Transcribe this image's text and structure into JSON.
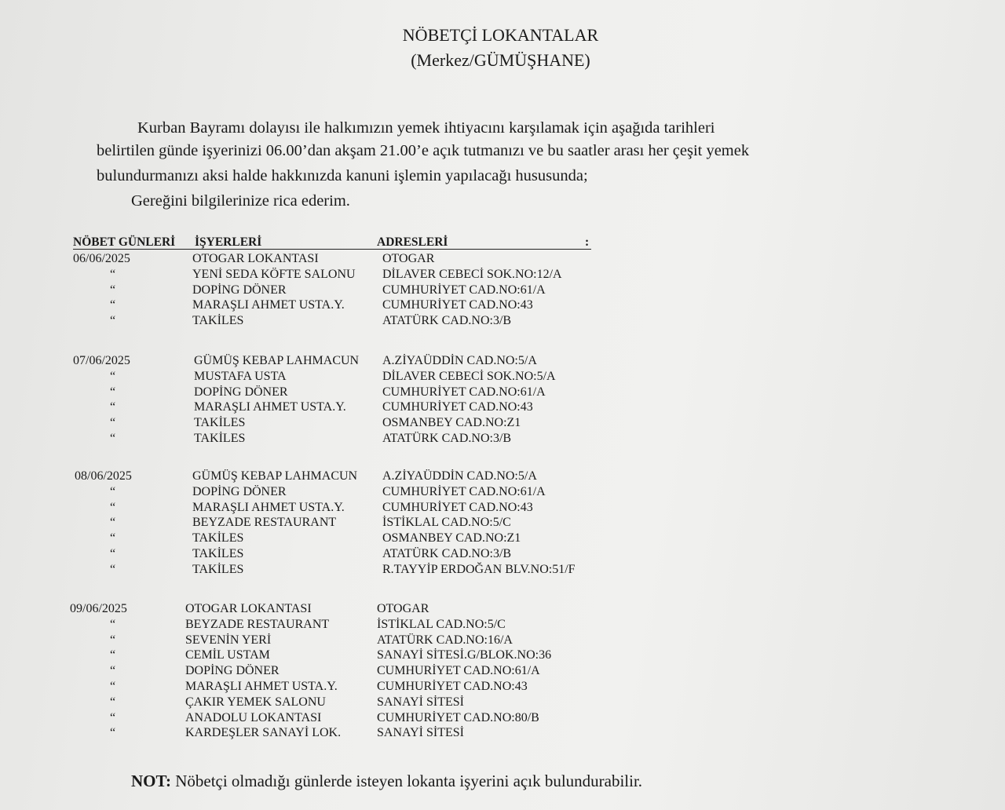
{
  "title": "NÖBETÇİ LOKANTALAR",
  "subtitle": "(Merkez/GÜMÜŞHANE)",
  "paragraph": {
    "line1": "Kurban Bayramı dolayısı ile halkımızın yemek ihtiyacını karşılamak için aşağıda tarihleri",
    "line2": "belirtilen günde işyerinizi 06.00’dan akşam 21.00’e  açık tutmanızı ve bu saatler arası her çeşit yemek",
    "line3": "bulundurmanızı aksi halde hakkınızda kanuni  işlemin yapılacağı hususunda;",
    "line4": "Gereğini bilgilerinize  rica ederim."
  },
  "table": {
    "headers": [
      "NÖBET GÜNLERİ",
      "İŞYERLERİ",
      "ADRESLERİ",
      ":"
    ],
    "ditto": "“",
    "days": [
      {
        "date": "06/06/2025",
        "rows": [
          [
            "OTOGAR LOKANTASI",
            "OTOGAR"
          ],
          [
            "YENİ SEDA KÖFTE SALONU",
            "DİLAVER CEBECİ SOK.NO:12/A"
          ],
          [
            "DOPİNG DÖNER",
            "CUMHURİYET CAD.NO:61/A"
          ],
          [
            "MARAŞLI AHMET USTA.Y.",
            "CUMHURİYET CAD.NO:43"
          ],
          [
            "TAKİLES",
            "ATATÜRK CAD.NO:3/B"
          ]
        ]
      },
      {
        "date": "07/06/2025",
        "rows": [
          [
            "GÜMÜŞ KEBAP LAHMACUN",
            "A.ZİYAÜDDİN CAD.NO:5/A"
          ],
          [
            "MUSTAFA USTA",
            "DİLAVER CEBECİ SOK.NO:5/A"
          ],
          [
            "DOPİNG DÖNER",
            "CUMHURİYET CAD.NO:61/A"
          ],
          [
            "MARAŞLI AHMET USTA.Y.",
            "CUMHURİYET CAD.NO:43"
          ],
          [
            "TAKİLES",
            "OSMANBEY CAD.NO:Z1"
          ],
          [
            "TAKİLES",
            "ATATÜRK CAD.NO:3/B"
          ]
        ]
      },
      {
        "date": "08/06/2025",
        "rows": [
          [
            "GÜMÜŞ KEBAP LAHMACUN",
            "A.ZİYAÜDDİN CAD.NO:5/A"
          ],
          [
            "DOPİNG DÖNER",
            "CUMHURİYET CAD.NO:61/A"
          ],
          [
            "MARAŞLI AHMET USTA.Y.",
            "CUMHURİYET CAD.NO:43"
          ],
          [
            "BEYZADE  RESTAURANT",
            "İSTİKLAL CAD.NO:5/C"
          ],
          [
            "TAKİLES",
            "OSMANBEY CAD.NO:Z1"
          ],
          [
            "TAKİLES",
            "ATATÜRK CAD.NO:3/B"
          ],
          [
            "TAKİLES",
            "R.TAYYİP ERDOĞAN BLV.NO:51/F"
          ]
        ]
      },
      {
        "date": "09/06/2025",
        "rows": [
          [
            "OTOGAR LOKANTASI",
            "OTOGAR"
          ],
          [
            "BEYZADE  RESTAURANT",
            "İSTİKLAL CAD.NO:5/C"
          ],
          [
            "SEVENİN YERİ",
            "ATATÜRK CAD.NO:16/A"
          ],
          [
            "CEMİL USTAM",
            "SANAYİ SİTESİ.G/BLOK.NO:36"
          ],
          [
            "DOPİNG DÖNER",
            "CUMHURİYET CAD.NO:61/A"
          ],
          [
            "MARAŞLI AHMET USTA.Y.",
            "CUMHURİYET CAD.NO:43"
          ],
          [
            "ÇAKIR YEMEK SALONU",
            "SANAYİ SİTESİ"
          ],
          [
            "ANADOLU LOKANTASI",
            "CUMHURİYET CAD.NO:80/B"
          ],
          [
            "KARDEŞLER SANAYİ LOK.",
            "SANAYİ SİTESİ"
          ]
        ]
      }
    ]
  },
  "note": {
    "label": "NOT:",
    "text": " Nöbetçi olmadığı günlerde isteyen lokanta işyerini açık bulundurabilir."
  }
}
